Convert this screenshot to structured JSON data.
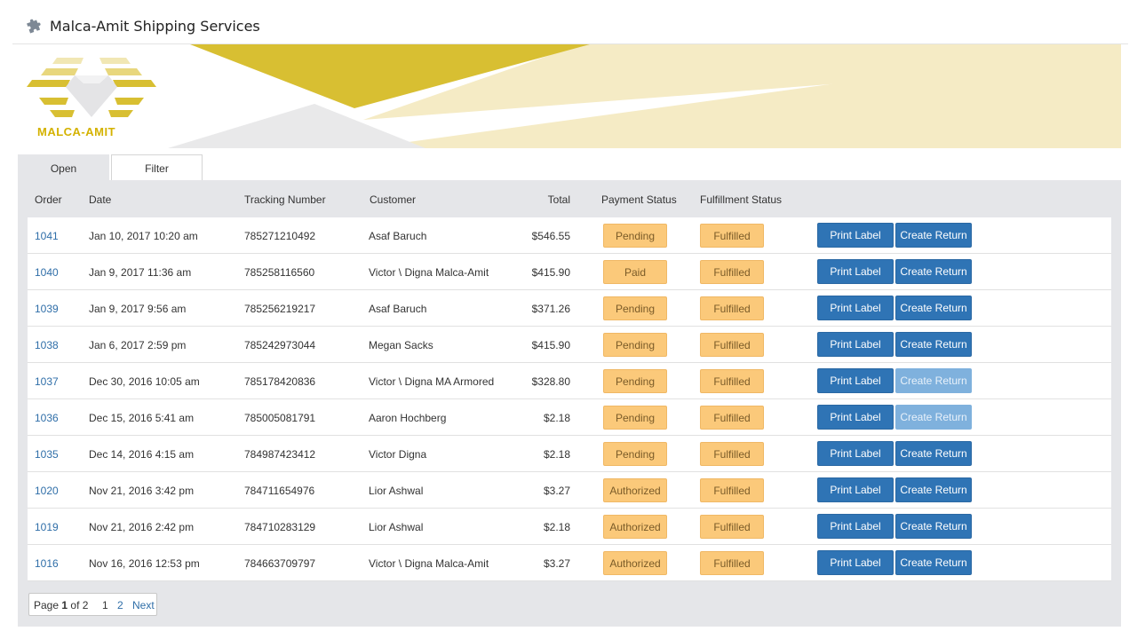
{
  "app": {
    "title": "Malca-Amit Shipping Services"
  },
  "logo": {
    "text": "MALCA-AMIT"
  },
  "tabs": [
    {
      "label": "Open",
      "active": true
    },
    {
      "label": "Filter",
      "active": false
    }
  ],
  "table": {
    "headers": {
      "order": "Order",
      "date": "Date",
      "tracking": "Tracking Number",
      "customer": "Customer",
      "total": "Total",
      "payment": "Payment Status",
      "fulfillment": "Fulfillment Status"
    },
    "rows": [
      {
        "order": "1041",
        "date": "Jan 10, 2017 10:20 am",
        "tracking": "785271210492",
        "customer": "Asaf Baruch",
        "total": "$546.55",
        "payment": "Pending",
        "fulfillment": "Fulfilled",
        "print": "Print Label",
        "ret": "Create Return",
        "ret_disabled": false
      },
      {
        "order": "1040",
        "date": "Jan 9, 2017 11:36 am",
        "tracking": "785258116560",
        "customer": "Victor \\ Digna Malca-Amit",
        "total": "$415.90",
        "payment": "Paid",
        "fulfillment": "Fulfilled",
        "print": "Print Label",
        "ret": "Create Return",
        "ret_disabled": false
      },
      {
        "order": "1039",
        "date": "Jan 9, 2017 9:56 am",
        "tracking": "785256219217",
        "customer": "Asaf Baruch",
        "total": "$371.26",
        "payment": "Pending",
        "fulfillment": "Fulfilled",
        "print": "Print Label",
        "ret": "Create Return",
        "ret_disabled": false
      },
      {
        "order": "1038",
        "date": "Jan 6, 2017 2:59 pm",
        "tracking": "785242973044",
        "customer": "Megan Sacks",
        "total": "$415.90",
        "payment": "Pending",
        "fulfillment": "Fulfilled",
        "print": "Print Label",
        "ret": "Create Return",
        "ret_disabled": false
      },
      {
        "order": "1037",
        "date": "Dec 30, 2016 10:05 am",
        "tracking": "785178420836",
        "customer": "Victor \\ Digna MA Armored",
        "total": "$328.80",
        "payment": "Pending",
        "fulfillment": "Fulfilled",
        "print": "Print Label",
        "ret": "Create Return",
        "ret_disabled": true
      },
      {
        "order": "1036",
        "date": "Dec 15, 2016 5:41 am",
        "tracking": "785005081791",
        "customer": "Aaron Hochberg",
        "total": "$2.18",
        "payment": "Pending",
        "fulfillment": "Fulfilled",
        "print": "Print Label",
        "ret": "Create Return",
        "ret_disabled": true
      },
      {
        "order": "1035",
        "date": "Dec 14, 2016 4:15 am",
        "tracking": "784987423412",
        "customer": "Victor Digna",
        "total": "$2.18",
        "payment": "Pending",
        "fulfillment": "Fulfilled",
        "print": "Print Label",
        "ret": "Create Return",
        "ret_disabled": false
      },
      {
        "order": "1020",
        "date": "Nov 21, 2016 3:42 pm",
        "tracking": "784711654976",
        "customer": "Lior Ashwal",
        "total": "$3.27",
        "payment": "Authorized",
        "fulfillment": "Fulfilled",
        "print": "Print Label",
        "ret": "Create Return",
        "ret_disabled": false
      },
      {
        "order": "1019",
        "date": "Nov 21, 2016 2:42 pm",
        "tracking": "784710283129",
        "customer": "Lior Ashwal",
        "total": "$2.18",
        "payment": "Authorized",
        "fulfillment": "Fulfilled",
        "print": "Print Label",
        "ret": "Create Return",
        "ret_disabled": false
      },
      {
        "order": "1016",
        "date": "Nov 16, 2016 12:53 pm",
        "tracking": "784663709797",
        "customer": "Victor \\ Digna Malca-Amit",
        "total": "$3.27",
        "payment": "Authorized",
        "fulfillment": "Fulfilled",
        "print": "Print Label",
        "ret": "Create Return",
        "ret_disabled": false
      }
    ]
  },
  "pager": {
    "page_prefix": "Page",
    "current": "1",
    "of_text": "of 2",
    "page1": "1",
    "page2": "2",
    "next": "Next"
  },
  "icons": {
    "app": "puzzle-icon"
  },
  "colors": {
    "brand_gold": "#d4b200",
    "status_badge": "#fbc97a",
    "button_primary": "#2f74b5",
    "button_disabled": "#7fb1dd",
    "link": "#2f6ea8"
  }
}
